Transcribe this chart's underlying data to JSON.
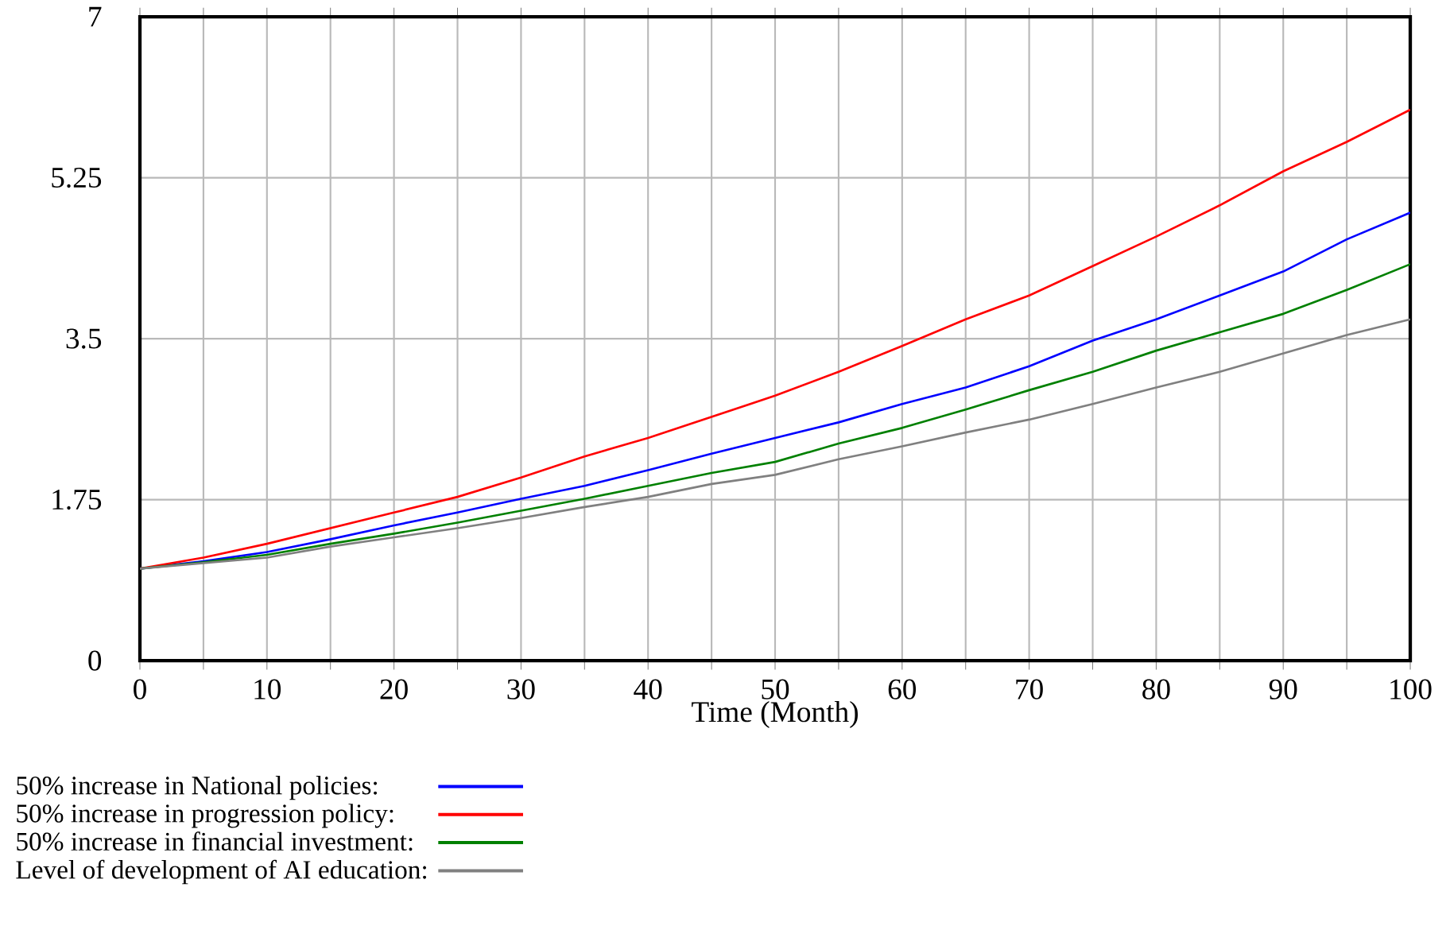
{
  "chart_data": {
    "type": "line",
    "xlabel": "Time (Month)",
    "x": [
      0,
      5,
      10,
      15,
      20,
      25,
      30,
      35,
      40,
      45,
      50,
      55,
      60,
      65,
      70,
      75,
      80,
      85,
      90,
      95,
      100
    ],
    "series": [
      {
        "name": "50% increase in National policies:",
        "color": "#0000ff",
        "values": [
          1.0,
          1.08,
          1.18,
          1.32,
          1.47,
          1.61,
          1.76,
          1.9,
          2.07,
          2.25,
          2.42,
          2.59,
          2.79,
          2.97,
          3.2,
          3.48,
          3.71,
          3.97,
          4.23,
          4.58,
          4.87
        ]
      },
      {
        "name": "50% increase in progression policy:",
        "color": "#ff0000",
        "values": [
          1.0,
          1.12,
          1.27,
          1.44,
          1.61,
          1.78,
          1.99,
          2.22,
          2.42,
          2.65,
          2.88,
          3.14,
          3.42,
          3.71,
          3.97,
          4.29,
          4.61,
          4.95,
          5.32,
          5.64,
          5.99
        ]
      },
      {
        "name": "50% increase in financial investment:",
        "color": "#008000",
        "values": [
          1.0,
          1.07,
          1.15,
          1.27,
          1.38,
          1.5,
          1.63,
          1.76,
          1.9,
          2.04,
          2.16,
          2.36,
          2.53,
          2.73,
          2.94,
          3.14,
          3.37,
          3.57,
          3.77,
          4.03,
          4.31
        ]
      },
      {
        "name": "Level of development of AI education:",
        "color": "#808080",
        "values": [
          1.0,
          1.06,
          1.12,
          1.24,
          1.34,
          1.44,
          1.55,
          1.67,
          1.78,
          1.92,
          2.02,
          2.19,
          2.33,
          2.48,
          2.62,
          2.79,
          2.97,
          3.14,
          3.34,
          3.54,
          3.71
        ]
      }
    ],
    "xlim": [
      0,
      100
    ],
    "ylim": [
      0,
      7
    ],
    "xticks": [
      0,
      {
        "value": 5,
        "label": null
      },
      10,
      {
        "value": 15,
        "label": null
      },
      20,
      {
        "value": 25,
        "label": null
      },
      30,
      {
        "value": 35,
        "label": null
      },
      40,
      {
        "value": 45,
        "label": null
      },
      50,
      {
        "value": 55,
        "label": null
      },
      60,
      {
        "value": 65,
        "label": null
      },
      70,
      {
        "value": 75,
        "label": null
      },
      80,
      {
        "value": 85,
        "label": null
      },
      90,
      {
        "value": 95,
        "label": null
      },
      100
    ],
    "yticks": [
      0,
      1.75,
      3.5,
      5.25,
      7
    ],
    "grid": true,
    "legend": "bottom",
    "line_style": "solid"
  }
}
